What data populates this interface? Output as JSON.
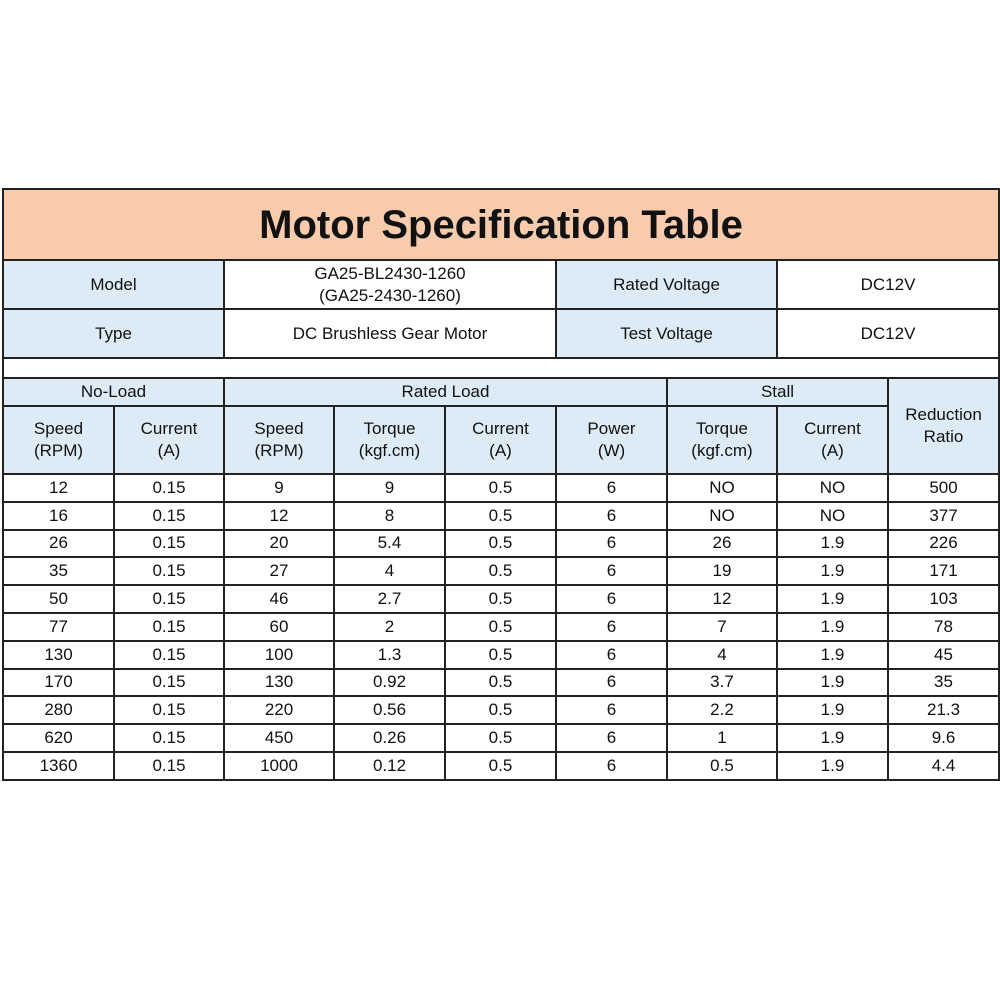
{
  "title": "Motor Specification Table",
  "info": {
    "model_label": "Model",
    "model_value_1": "GA25-BL2430-1260",
    "model_value_2": "(GA25-2430-1260)",
    "rated_voltage_label": "Rated Voltage",
    "rated_voltage_value": "DC12V",
    "type_label": "Type",
    "type_value": "DC Brushless Gear Motor",
    "test_voltage_label": "Test Voltage",
    "test_voltage_value": "DC12V"
  },
  "groups": {
    "no_load": "No-Load",
    "rated_load": "Rated Load",
    "stall": "Stall",
    "reduction_1": "Reduction",
    "reduction_2": "Ratio"
  },
  "columns": [
    [
      "Speed",
      "(RPM)"
    ],
    [
      "Current",
      "(A)"
    ],
    [
      "Speed",
      "(RPM)"
    ],
    [
      "Torque",
      "(kgf.cm)"
    ],
    [
      "Current",
      "(A)"
    ],
    [
      "Power",
      "(W)"
    ],
    [
      "Torque",
      "(kgf.cm)"
    ],
    [
      "Current",
      "(A)"
    ]
  ],
  "rows": [
    [
      "12",
      "0.15",
      "9",
      "9",
      "0.5",
      "6",
      "NO",
      "NO",
      "500"
    ],
    [
      "16",
      "0.15",
      "12",
      "8",
      "0.5",
      "6",
      "NO",
      "NO",
      "377"
    ],
    [
      "26",
      "0.15",
      "20",
      "5.4",
      "0.5",
      "6",
      "26",
      "1.9",
      "226"
    ],
    [
      "35",
      "0.15",
      "27",
      "4",
      "0.5",
      "6",
      "19",
      "1.9",
      "171"
    ],
    [
      "50",
      "0.15",
      "46",
      "2.7",
      "0.5",
      "6",
      "12",
      "1.9",
      "103"
    ],
    [
      "77",
      "0.15",
      "60",
      "2",
      "0.5",
      "6",
      "7",
      "1.9",
      "78"
    ],
    [
      "130",
      "0.15",
      "100",
      "1.3",
      "0.5",
      "6",
      "4",
      "1.9",
      "45"
    ],
    [
      "170",
      "0.15",
      "130",
      "0.92",
      "0.5",
      "6",
      "3.7",
      "1.9",
      "35"
    ],
    [
      "280",
      "0.15",
      "220",
      "0.56",
      "0.5",
      "6",
      "2.2",
      "1.9",
      "21.3"
    ],
    [
      "620",
      "0.15",
      "450",
      "0.26",
      "0.5",
      "6",
      "1",
      "1.9",
      "9.6"
    ],
    [
      "1360",
      "0.15",
      "1000",
      "0.12",
      "0.5",
      "6",
      "0.5",
      "1.9",
      "4.4"
    ]
  ],
  "colors": {
    "title_bg": "#f8cbad",
    "header_bg": "#ddebf7"
  }
}
